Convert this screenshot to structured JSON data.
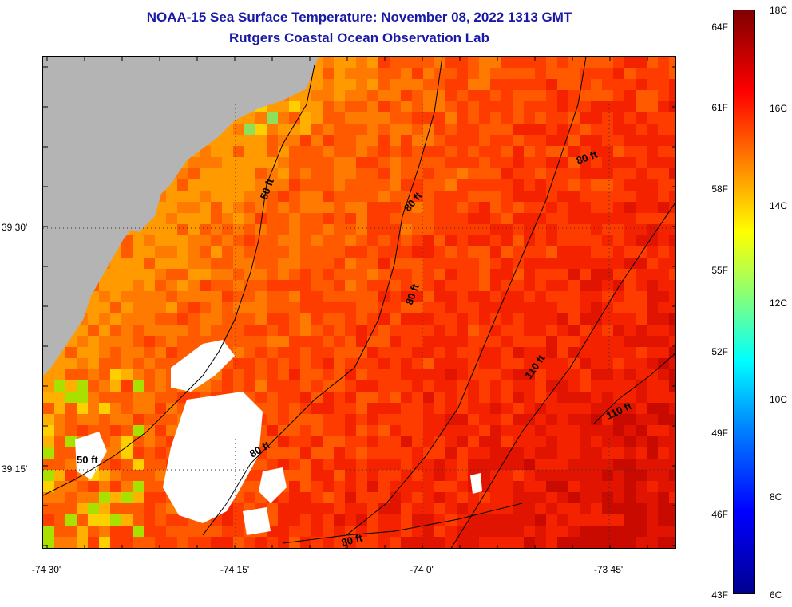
{
  "title": {
    "line1": "NOAA-15 Sea Surface Temperature:  November 08, 2022 1313 GMT",
    "line2": "Rutgers Coastal Ocean Observation Lab"
  },
  "axes": {
    "longitude_labels": [
      "-74 30'",
      "-74 15'",
      "-74 0'",
      "-73 45'"
    ],
    "latitude_labels": [
      "39 30'",
      "39 15'"
    ]
  },
  "colorbar": {
    "fahrenheit_labels": [
      "64F",
      "61F",
      "58F",
      "55F",
      "52F",
      "49F",
      "46F",
      "43F"
    ],
    "celsius_labels": [
      "18C",
      "16C",
      "14C",
      "12C",
      "10C",
      "8C",
      "6C"
    ],
    "colors": {
      "cold": "#00008f",
      "cool": "#00ffff",
      "mid": "#ffff00",
      "warm": "#ff0000",
      "hot": "#800000"
    }
  },
  "map": {
    "land_color": "#b4b4b4",
    "cloud_color": "#ffffff",
    "contour_labels": [
      "50 ft",
      "80 ft",
      "80 ft",
      "110 ft",
      "110 ft",
      "80 ft",
      "50 ft",
      "80 ft",
      "80 ft"
    ]
  }
}
